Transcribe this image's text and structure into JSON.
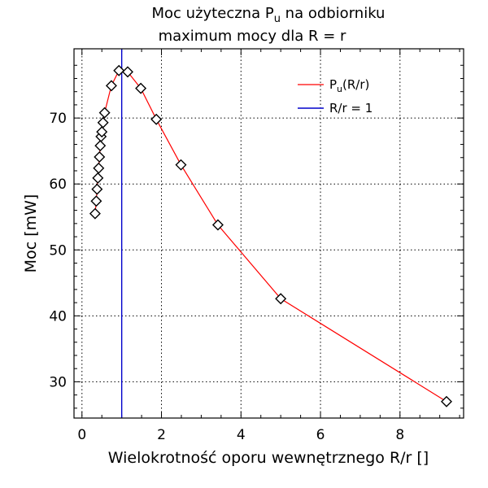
{
  "chart_data": {
    "type": "line",
    "title_line1_pre": "Moc użyteczna P",
    "title_line1_sub": "u",
    "title_line1_post": " na odbiorniku",
    "title_line2": "maximum mocy dla R = r",
    "xlabel": "Wielokrotność oporu wewnętrznego R/r []",
    "ylabel": "Moc [mW]",
    "xlim": [
      -0.2,
      9.6
    ],
    "ylim": [
      24.5,
      80.5
    ],
    "xticks": [
      0,
      2,
      4,
      6,
      8
    ],
    "yticks": [
      30,
      40,
      50,
      60,
      70
    ],
    "grid": true,
    "legend_position": "top-right",
    "series": [
      {
        "name_pre": "P",
        "name_sub": "u",
        "name_post": "(R/r)",
        "color": "#ff0000",
        "marker": "diamond",
        "x": [
          0.33,
          0.36,
          0.38,
          0.4,
          0.42,
          0.44,
          0.46,
          0.48,
          0.5,
          0.53,
          0.57,
          0.74,
          0.93,
          1.15,
          1.48,
          1.87,
          2.49,
          3.42,
          5.0,
          9.17
        ],
        "y": [
          55.5,
          57.4,
          59.2,
          60.9,
          62.4,
          64.1,
          65.8,
          67.2,
          67.9,
          69.3,
          70.8,
          74.9,
          77.2,
          77.0,
          74.5,
          69.8,
          62.9,
          53.8,
          42.6,
          27.0
        ]
      },
      {
        "name": "R/r = 1",
        "color": "#0000cc",
        "x_const": 1
      }
    ]
  }
}
